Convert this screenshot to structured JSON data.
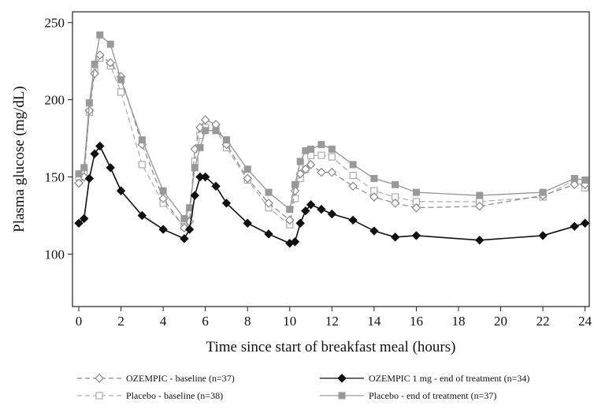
{
  "chart_data": {
    "type": "line",
    "xlabel": "Time since start of breakfast meal (hours)",
    "ylabel": "Plasma glucose (mg/dL)",
    "xlim": [
      -0.3,
      24.2
    ],
    "ylim": [
      66,
      257
    ],
    "xticks": [
      "0",
      "2",
      "4",
      "6",
      "8",
      "10",
      "12",
      "14",
      "16",
      "18",
      "20",
      "22",
      "24"
    ],
    "yticks": [
      "100",
      "150",
      "200",
      "250"
    ],
    "grid": false,
    "legend_position": "bottom",
    "series": [
      {
        "name": "OZEMPIC - baseline (n=37)",
        "color": "#888888",
        "line_style": "dashed",
        "marker": "open-diamond",
        "x": [
          0,
          0.25,
          0.5,
          0.75,
          1,
          1.5,
          2,
          3,
          4,
          5,
          5.25,
          5.5,
          5.75,
          6,
          6.5,
          7,
          8,
          9,
          10,
          10.25,
          10.5,
          10.75,
          11,
          11.5,
          12,
          13,
          14,
          15,
          16,
          19,
          22,
          23.5,
          24
        ],
        "y": [
          146,
          150,
          193,
          217,
          229,
          224,
          215,
          171,
          136,
          117,
          121,
          168,
          182,
          187,
          184,
          171,
          149,
          133,
          122,
          141,
          152,
          155,
          158,
          153,
          153,
          144,
          137,
          133,
          130,
          131,
          138,
          145,
          145
        ]
      },
      {
        "name": "OZEMPIC 1 mg - end of treatment (n=34)",
        "color": "#111111",
        "line_style": "solid",
        "marker": "filled-diamond",
        "x": [
          0,
          0.25,
          0.5,
          0.75,
          1,
          1.5,
          2,
          3,
          4,
          5,
          5.25,
          5.5,
          5.75,
          6,
          6.5,
          7,
          8,
          9,
          10,
          10.25,
          10.5,
          10.75,
          11,
          11.5,
          12,
          13,
          14,
          15,
          16,
          19,
          22,
          23.5,
          24
        ],
        "y": [
          120,
          123,
          149,
          165,
          170,
          156,
          141,
          125,
          116,
          110,
          116,
          138,
          150,
          150,
          144,
          133,
          120,
          113,
          107,
          108,
          120,
          128,
          132,
          129,
          126,
          122,
          115,
          111,
          112,
          109,
          112,
          118,
          120
        ]
      },
      {
        "name": "Placebo - baseline (n=38)",
        "color": "#aaaaaa",
        "line_style": "dashed",
        "marker": "open-square",
        "x": [
          0,
          0.25,
          0.5,
          0.75,
          1,
          1.5,
          2,
          3,
          4,
          5,
          5.25,
          5.5,
          5.75,
          6,
          6.5,
          7,
          8,
          9,
          10,
          10.25,
          10.5,
          10.75,
          11,
          11.5,
          12,
          13,
          14,
          15,
          16,
          19,
          22,
          23.5,
          24
        ],
        "y": [
          150,
          153,
          192,
          220,
          227,
          222,
          205,
          158,
          133,
          118,
          126,
          160,
          177,
          182,
          181,
          169,
          148,
          130,
          119,
          136,
          149,
          155,
          164,
          164,
          163,
          151,
          141,
          137,
          134,
          134,
          137,
          148,
          143
        ]
      },
      {
        "name": "Placebo - end of treatment (n=37)",
        "color": "#999999",
        "line_style": "solid",
        "marker": "filled-square",
        "x": [
          0,
          0.25,
          0.5,
          0.75,
          1,
          1.5,
          2,
          3,
          4,
          5,
          5.25,
          5.5,
          5.75,
          6,
          6.5,
          7,
          8,
          9,
          10,
          10.25,
          10.5,
          10.75,
          11,
          11.5,
          12,
          13,
          14,
          15,
          16,
          19,
          22,
          23.5,
          24
        ],
        "y": [
          152,
          156,
          198,
          223,
          242,
          236,
          213,
          174,
          141,
          123,
          130,
          156,
          169,
          180,
          180,
          174,
          155,
          140,
          129,
          145,
          160,
          167,
          168,
          171,
          168,
          158,
          149,
          145,
          140,
          138,
          140,
          149,
          148
        ]
      }
    ]
  }
}
